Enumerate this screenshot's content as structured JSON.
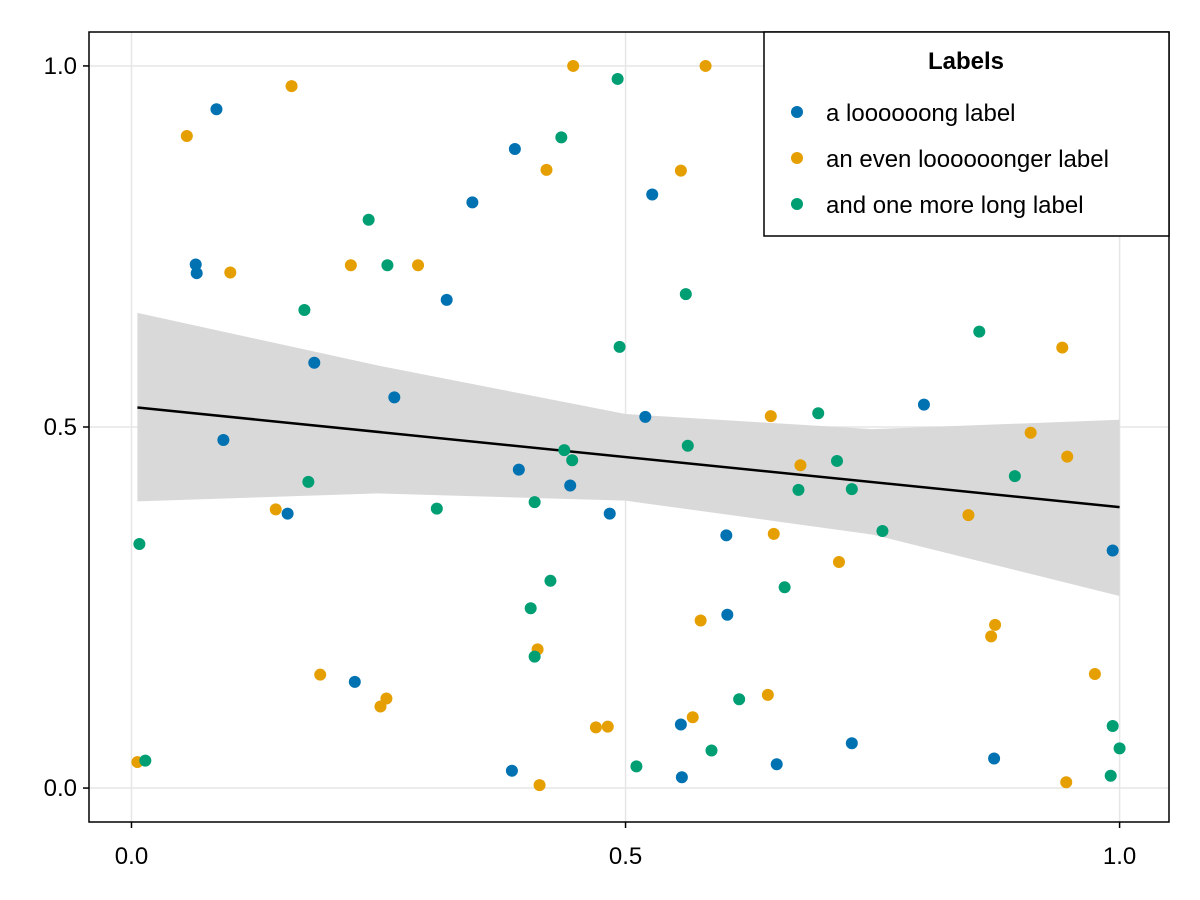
{
  "chart_data": {
    "type": "scatter",
    "title": "",
    "xlabel": "",
    "ylabel": "",
    "xlim": [
      -0.043,
      1.05
    ],
    "ylim": [
      -0.047,
      1.047
    ],
    "xticks": [
      0.0,
      0.5,
      1.0
    ],
    "yticks": [
      0.0,
      0.5,
      1.0
    ],
    "xtick_labels": [
      "0.0",
      "0.5",
      "1.0"
    ],
    "ytick_labels": [
      "0.0",
      "0.5",
      "1.0"
    ],
    "grid": true,
    "legend": {
      "title": "Labels",
      "position": "top-right"
    },
    "series": [
      {
        "name": "a loooooong label",
        "color": "#0072b2",
        "points": [
          [
            0.086,
            0.94
          ],
          [
            0.065,
            0.725
          ],
          [
            0.066,
            0.713
          ],
          [
            0.093,
            0.482
          ],
          [
            0.158,
            0.38
          ],
          [
            0.185,
            0.589
          ],
          [
            0.226,
            0.147
          ],
          [
            0.266,
            0.541
          ],
          [
            0.319,
            0.676
          ],
          [
            0.345,
            0.811
          ],
          [
            0.385,
            0.024
          ],
          [
            0.388,
            0.885
          ],
          [
            0.392,
            0.441
          ],
          [
            0.444,
            0.419
          ],
          [
            0.484,
            0.38
          ],
          [
            0.52,
            0.514
          ],
          [
            0.527,
            0.822
          ],
          [
            0.556,
            0.088
          ],
          [
            0.557,
            0.015
          ],
          [
            0.602,
            0.35
          ],
          [
            0.603,
            0.24
          ],
          [
            0.653,
            0.033
          ],
          [
            0.729,
            0.062
          ],
          [
            0.802,
            0.531
          ],
          [
            0.873,
            0.041
          ],
          [
            0.993,
            0.329
          ]
        ]
      },
      {
        "name": "an even loooooonger label",
        "color": "#e69f00",
        "points": [
          [
            0.006,
            0.036
          ],
          [
            0.056,
            0.903
          ],
          [
            0.1,
            0.714
          ],
          [
            0.146,
            0.386
          ],
          [
            0.162,
            0.972
          ],
          [
            0.191,
            0.157
          ],
          [
            0.222,
            0.724
          ],
          [
            0.252,
            0.113
          ],
          [
            0.258,
            0.124
          ],
          [
            0.29,
            0.724
          ],
          [
            0.411,
            0.192
          ],
          [
            0.413,
            0.004
          ],
          [
            0.42,
            0.856
          ],
          [
            0.447,
            1.0
          ],
          [
            0.47,
            0.084
          ],
          [
            0.482,
            0.085
          ],
          [
            0.556,
            0.855
          ],
          [
            0.568,
            0.098
          ],
          [
            0.576,
            0.232
          ],
          [
            0.581,
            1.0
          ],
          [
            0.644,
            0.129
          ],
          [
            0.647,
            0.515
          ],
          [
            0.65,
            0.352
          ],
          [
            0.677,
            0.447
          ],
          [
            0.716,
            0.313
          ],
          [
            0.847,
            0.378
          ],
          [
            0.87,
            0.21
          ],
          [
            0.874,
            0.226
          ],
          [
            0.91,
            0.492
          ],
          [
            0.942,
            0.61
          ],
          [
            0.946,
            0.008
          ],
          [
            0.947,
            0.459
          ],
          [
            0.975,
            0.158
          ]
        ]
      },
      {
        "name": "and one more long label",
        "color": "#009e73",
        "points": [
          [
            0.008,
            0.338
          ],
          [
            0.014,
            0.038
          ],
          [
            0.175,
            0.662
          ],
          [
            0.179,
            0.424
          ],
          [
            0.24,
            0.787
          ],
          [
            0.259,
            0.724
          ],
          [
            0.309,
            0.387
          ],
          [
            0.404,
            0.249
          ],
          [
            0.408,
            0.396
          ],
          [
            0.408,
            0.182
          ],
          [
            0.424,
            0.287
          ],
          [
            0.435,
            0.901
          ],
          [
            0.438,
            0.468
          ],
          [
            0.446,
            0.454
          ],
          [
            0.492,
            0.982
          ],
          [
            0.494,
            0.611
          ],
          [
            0.511,
            0.03
          ],
          [
            0.561,
            0.684
          ],
          [
            0.563,
            0.474
          ],
          [
            0.587,
            0.052
          ],
          [
            0.615,
            0.123
          ],
          [
            0.661,
            0.278
          ],
          [
            0.675,
            0.413
          ],
          [
            0.695,
            0.519
          ],
          [
            0.714,
            0.453
          ],
          [
            0.729,
            0.414
          ],
          [
            0.76,
            0.356
          ],
          [
            0.858,
            0.632
          ],
          [
            0.894,
            0.432
          ],
          [
            0.991,
            0.017
          ],
          [
            0.993,
            0.086
          ],
          [
            1.0,
            0.055
          ]
        ]
      }
    ],
    "regression": {
      "line": [
        [
          0.006,
          0.527
        ],
        [
          1.0,
          0.389
        ]
      ],
      "band_upper": [
        [
          0.006,
          0.658
        ],
        [
          0.25,
          0.585
        ],
        [
          0.5,
          0.518
        ],
        [
          0.75,
          0.497
        ],
        [
          1.0,
          0.51
        ]
      ],
      "band_lower": [
        [
          0.006,
          0.397
        ],
        [
          0.25,
          0.408
        ],
        [
          0.5,
          0.398
        ],
        [
          0.75,
          0.351
        ],
        [
          1.0,
          0.266
        ]
      ],
      "line_color": "#000000",
      "band_color": "#d9d9d9"
    }
  }
}
